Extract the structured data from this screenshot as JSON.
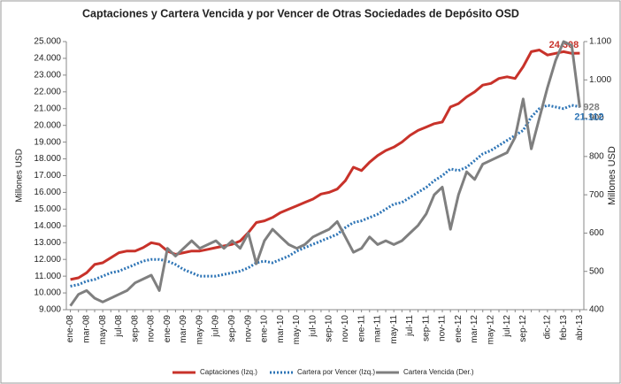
{
  "chart_data": {
    "type": "line",
    "title": "Captaciones y Cartera Vencida y por Vencer de Otras Sociedades de Depósito OSD",
    "ylabel": "Millones USD",
    "y2label": "Millones  USD",
    "categories": [
      "ene-08",
      null,
      "mar-08",
      null,
      "may-08",
      null,
      "jul-08",
      null,
      "sep-08",
      null,
      "nov-08",
      null,
      "ene-09",
      null,
      "mar-09",
      null,
      "may-09",
      null,
      "jul-09",
      null,
      "sep-09",
      null,
      "nov-09",
      null,
      "ene-10",
      null,
      "mar-10",
      null,
      "may-10",
      null,
      "jul-10",
      null,
      "sep-10",
      null,
      "nov-10",
      null,
      "ene-11",
      null,
      "mar-11",
      null,
      "may-11",
      null,
      "jul-11",
      null,
      "sep-11",
      null,
      "nov-11",
      null,
      "ene-12",
      null,
      "mar-12",
      null,
      "may-12",
      null,
      "jul-12",
      null,
      "sep-12",
      null,
      null,
      "dic-12",
      null,
      "feb-13",
      null,
      "abr-13"
    ],
    "series": [
      {
        "name": "Captaciones (Izq.)",
        "color": "#c8322a",
        "axis": "y",
        "style": "solid",
        "values": [
          10800,
          10900,
          11200,
          11700,
          11800,
          12100,
          12400,
          12500,
          12500,
          12700,
          13000,
          12900,
          12500,
          12300,
          12400,
          12500,
          12500,
          12600,
          12700,
          12800,
          12900,
          13100,
          13600,
          14200,
          14300,
          14500,
          14800,
          15000,
          15200,
          15400,
          15600,
          15900,
          16000,
          16200,
          16700,
          17500,
          17300,
          17800,
          18200,
          18500,
          18700,
          19000,
          19400,
          19700,
          19900,
          20100,
          20200,
          21100,
          21300,
          21700,
          22000,
          22400,
          22500,
          22800,
          22900,
          22800,
          23500,
          24400,
          24500,
          24200,
          24300,
          24400,
          24300,
          24308
        ],
        "value_labels": {
          "63": "24.308"
        }
      },
      {
        "name": "Cartera por Vencer (Izq.)",
        "color": "#2e75b6",
        "axis": "y",
        "style": "dotted",
        "values": [
          10400,
          10500,
          10700,
          10800,
          11000,
          11200,
          11300,
          11500,
          11700,
          11900,
          12000,
          12000,
          11900,
          11700,
          11400,
          11200,
          11000,
          11000,
          11000,
          11100,
          11200,
          11300,
          11500,
          11800,
          11900,
          11800,
          12000,
          12200,
          12500,
          12700,
          12900,
          13100,
          13300,
          13500,
          13900,
          14200,
          14300,
          14500,
          14700,
          15000,
          15300,
          15400,
          15700,
          16000,
          16300,
          16700,
          17000,
          17400,
          17300,
          17500,
          17900,
          18300,
          18500,
          18800,
          19100,
          19400,
          19700,
          20500,
          21000,
          21200,
          21100,
          21000,
          21200,
          21112
        ],
        "value_labels": {
          "63": "21.112"
        }
      },
      {
        "name": "Cartera Vencida (Der.)",
        "color": "#7f7f7f",
        "axis": "y2",
        "style": "solid",
        "values": [
          410,
          440,
          450,
          430,
          420,
          430,
          440,
          450,
          470,
          480,
          490,
          450,
          560,
          540,
          560,
          580,
          560,
          570,
          580,
          560,
          580,
          560,
          600,
          520,
          580,
          610,
          590,
          570,
          560,
          570,
          590,
          600,
          610,
          630,
          590,
          550,
          560,
          590,
          570,
          580,
          570,
          580,
          600,
          620,
          650,
          700,
          720,
          610,
          700,
          760,
          740,
          780,
          790,
          800,
          810,
          850,
          950,
          820,
          900,
          980,
          1050,
          1100,
          1090,
          928
        ],
        "value_labels": {
          "63": "928"
        }
      }
    ],
    "ylim": [
      9000,
      25000
    ],
    "yticks": [
      {
        "value": 9000,
        "label": "9.000"
      },
      {
        "value": 10000,
        "label": "10.000"
      },
      {
        "value": 11000,
        "label": "11.000"
      },
      {
        "value": 12000,
        "label": "12.000"
      },
      {
        "value": 13000,
        "label": "13.000"
      },
      {
        "value": 14000,
        "label": "14.000"
      },
      {
        "value": 15000,
        "label": "15.000"
      },
      {
        "value": 16000,
        "label": "16.000"
      },
      {
        "value": 17000,
        "label": "17.000"
      },
      {
        "value": 18000,
        "label": "18.000"
      },
      {
        "value": 19000,
        "label": "19.000"
      },
      {
        "value": 20000,
        "label": "20.000"
      },
      {
        "value": 21000,
        "label": "21.000"
      },
      {
        "value": 22000,
        "label": "22.000"
      },
      {
        "value": 23000,
        "label": "23.000"
      },
      {
        "value": 24000,
        "label": "24.000"
      },
      {
        "value": 25000,
        "label": "25.000"
      }
    ],
    "y2lim": [
      400,
      1100
    ],
    "y2ticks": [
      400,
      500,
      600,
      700,
      800,
      900,
      {
        "value": 1000,
        "label": "1.000"
      },
      {
        "value": 1100,
        "label": "1.100"
      }
    ],
    "grid": false,
    "legend": "bottom"
  }
}
